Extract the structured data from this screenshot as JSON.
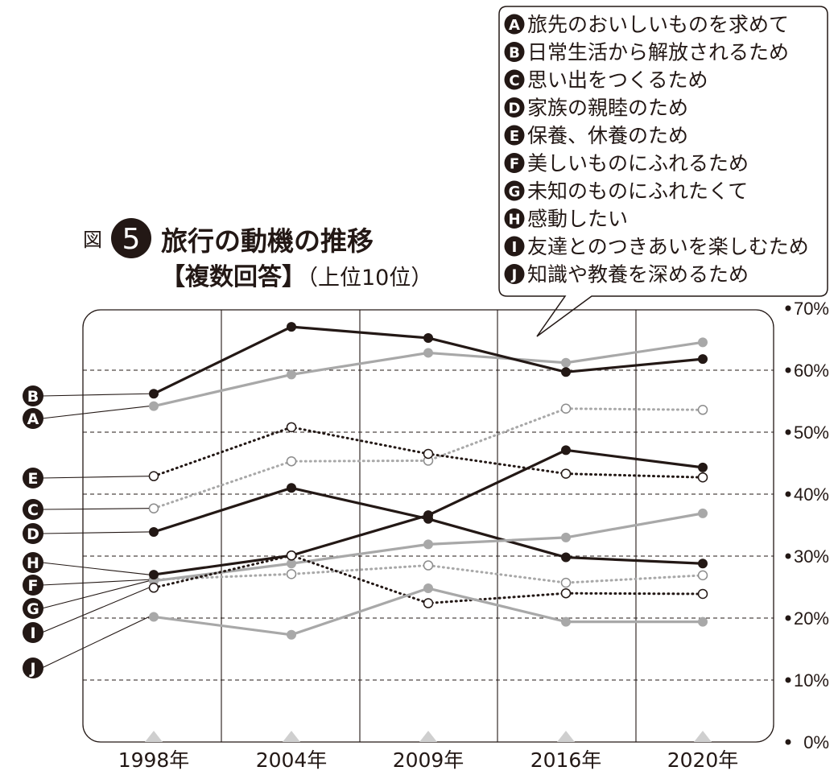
{
  "chart_data": {
    "type": "line",
    "fig_label": "図",
    "fig_number": "5",
    "title": "旅行の動機の推移",
    "subtitle_bold": "【複数回答】",
    "subtitle_note": "（上位10位）",
    "categories": [
      "1998年",
      "2004年",
      "2009年",
      "2016年",
      "2020年"
    ],
    "ylim": [
      0,
      70
    ],
    "yticks": [
      "0%",
      "10%",
      "20%",
      "30%",
      "40%",
      "50%",
      "60%",
      "70%"
    ],
    "grid": "horizontal dashed at 20%, 30%, 40%, 50%, 60%",
    "legend_position": "top-right",
    "series": [
      {
        "letter": "A",
        "name": "旅先のおいしいものを求めて",
        "values": [
          54.2,
          59.3,
          62.8,
          61.2,
          64.5
        ],
        "color": "#a8a8a8",
        "style": "solid-filled"
      },
      {
        "letter": "B",
        "name": "日常生活から解放されるため",
        "values": [
          56.2,
          67.0,
          65.2,
          59.7,
          61.8
        ],
        "color": "#231815",
        "style": "solid-filled"
      },
      {
        "letter": "C",
        "name": "思い出をつくるため",
        "values": [
          37.7,
          45.3,
          45.4,
          53.8,
          53.6
        ],
        "color": "#a8a8a8",
        "style": "dotted-open"
      },
      {
        "letter": "D",
        "name": "家族の親睦のため",
        "values": [
          33.9,
          41.0,
          36.0,
          29.8,
          28.8
        ],
        "color": "#231815",
        "style": "solid-filled"
      },
      {
        "letter": "E",
        "name": "保養、休養のため",
        "values": [
          42.9,
          50.8,
          46.5,
          43.3,
          42.7
        ],
        "color": "#231815",
        "style": "dotted-open"
      },
      {
        "letter": "F",
        "name": "美しいものにふれるため",
        "values": [
          26.2,
          27.1,
          28.5,
          25.7,
          26.9
        ],
        "color": "#a8a8a8",
        "style": "dotted-open"
      },
      {
        "letter": "G",
        "name": "未知のものにふれたくて",
        "values": [
          26.0,
          28.8,
          31.9,
          33.0,
          36.9
        ],
        "color": "#a8a8a8",
        "style": "solid-filled"
      },
      {
        "letter": "H",
        "name": "感動したい",
        "values": [
          27.0,
          30.1,
          36.6,
          47.1,
          44.3
        ],
        "color": "#231815",
        "style": "solid-filled",
        "marker": "open-first"
      },
      {
        "letter": "I",
        "name": "友達とのつきあいを楽しむため",
        "values": [
          24.9,
          30.1,
          22.4,
          24.0,
          23.9
        ],
        "color": "#231815",
        "style": "dotted-open"
      },
      {
        "letter": "J",
        "name": "知識や教養を深めるため",
        "values": [
          20.2,
          17.3,
          24.8,
          19.4,
          19.4
        ],
        "color": "#a8a8a8",
        "style": "solid-filled"
      }
    ]
  }
}
